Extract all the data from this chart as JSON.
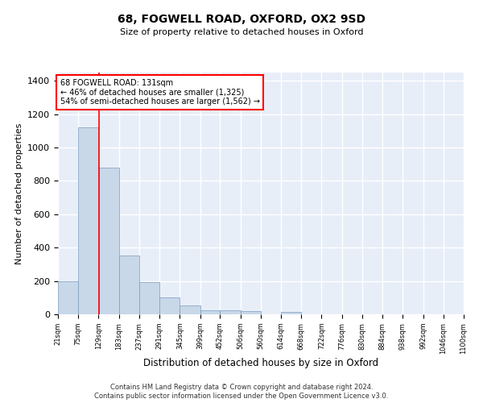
{
  "title_line1": "68, FOGWELL ROAD, OXFORD, OX2 9SD",
  "title_line2": "Size of property relative to detached houses in Oxford",
  "xlabel": "Distribution of detached houses by size in Oxford",
  "ylabel": "Number of detached properties",
  "bar_color": "#c8d8e8",
  "bar_edge_color": "#7a9abf",
  "background_color": "#e8eef8",
  "grid_color": "#ffffff",
  "annotation_box_text_line1": "68 FOGWELL ROAD: 131sqm",
  "annotation_box_text_line2": "← 46% of detached houses are smaller (1,325)",
  "annotation_box_text_line3": "54% of semi-detached houses are larger (1,562) →",
  "annotation_box_color": "white",
  "annotation_box_edge_color": "red",
  "vline_x": 131,
  "vline_color": "red",
  "footnote_line1": "Contains HM Land Registry data © Crown copyright and database right 2024.",
  "footnote_line2": "Contains public sector information licensed under the Open Government Licence v3.0.",
  "bin_edges": [
    21,
    75,
    129,
    183,
    237,
    291,
    345,
    399,
    452,
    506,
    560,
    614,
    668,
    722,
    776,
    830,
    884,
    938,
    992,
    1046,
    1100
  ],
  "bar_heights": [
    197,
    1120,
    878,
    352,
    192,
    100,
    52,
    22,
    22,
    18,
    0,
    15,
    0,
    0,
    0,
    0,
    0,
    0,
    0,
    0
  ],
  "ylim": [
    0,
    1450
  ],
  "yticks": [
    0,
    200,
    400,
    600,
    800,
    1000,
    1200,
    1400
  ]
}
